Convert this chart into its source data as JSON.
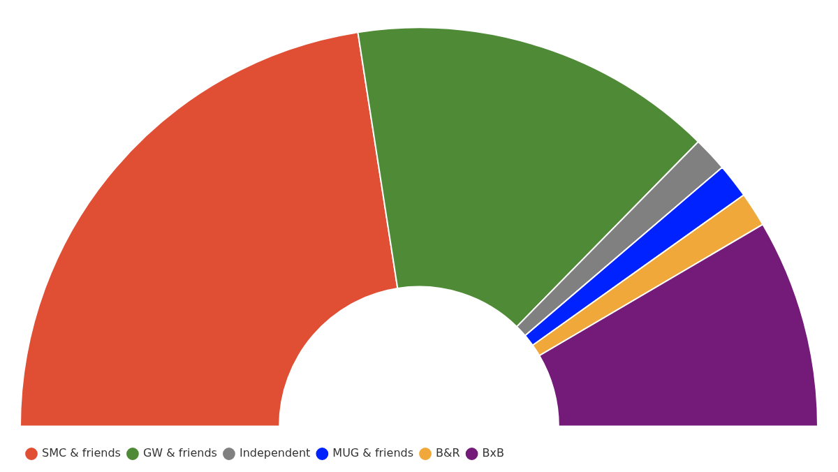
{
  "chart_data": {
    "type": "donut",
    "categories": [
      "SMC & friends",
      "GW & friends",
      "Independent",
      "MUG & friends",
      "B&R",
      "BxB"
    ],
    "values": [
      45.1,
      29.6,
      2.8,
      2.8,
      2.8,
      16.9
    ],
    "colors": [
      "#e04e34",
      "#4f8a37",
      "#808080",
      "#0022ff",
      "#f0a83a",
      "#741b7a"
    ],
    "legend": "bottom left"
  }
}
